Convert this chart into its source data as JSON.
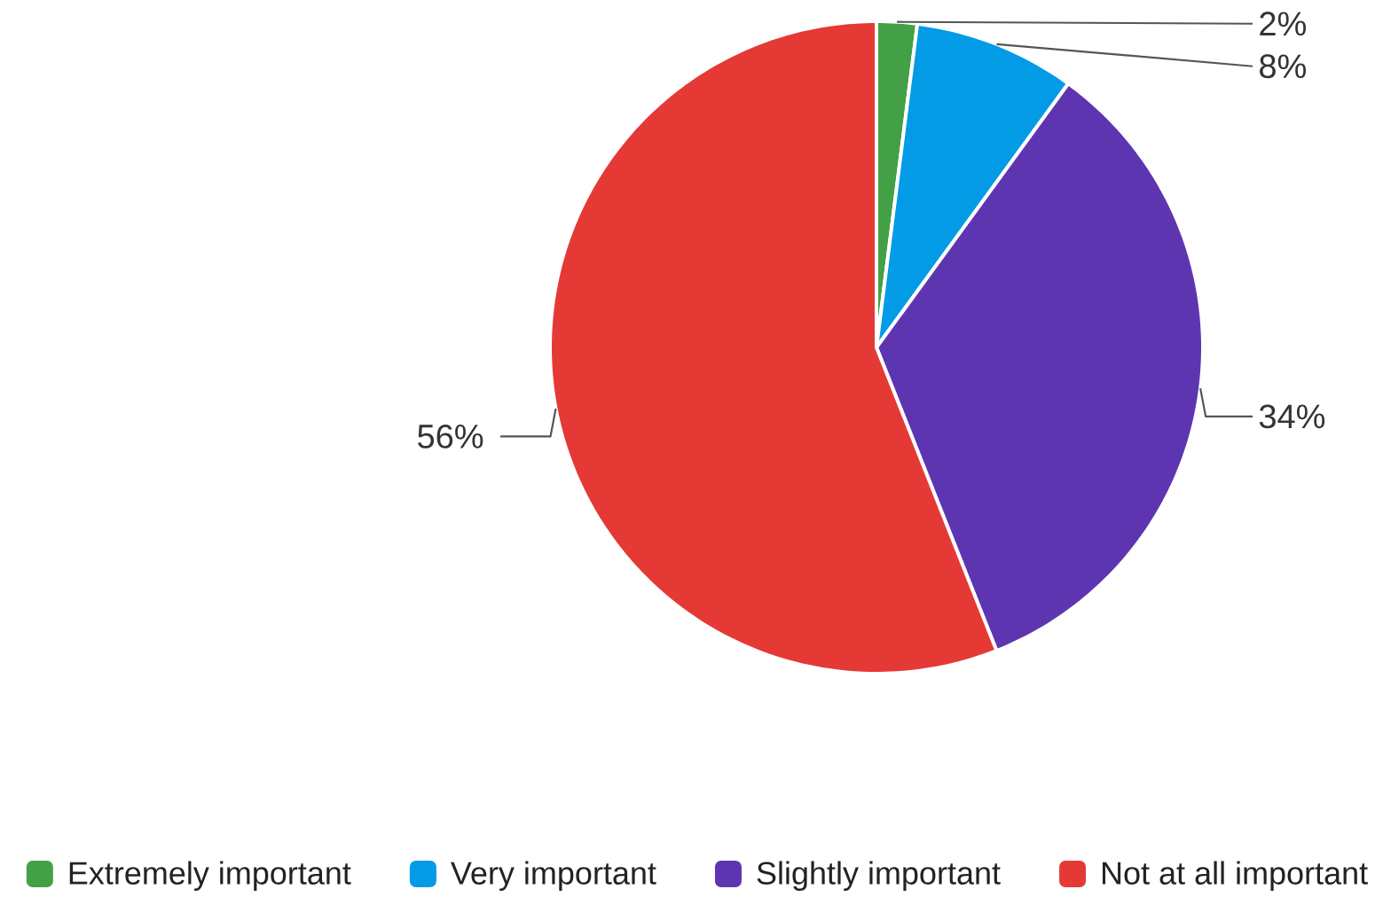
{
  "chart_data": {
    "type": "pie",
    "categories": [
      "Extremely important",
      "Very important",
      "Slightly important",
      "Not at all important"
    ],
    "values": [
      2,
      8,
      34,
      56
    ],
    "value_labels": [
      "2%",
      "8%",
      "34%",
      "56%"
    ],
    "colors": [
      "#43a047",
      "#039be5",
      "#5e35b1",
      "#e53935"
    ],
    "legend": "bottom"
  }
}
